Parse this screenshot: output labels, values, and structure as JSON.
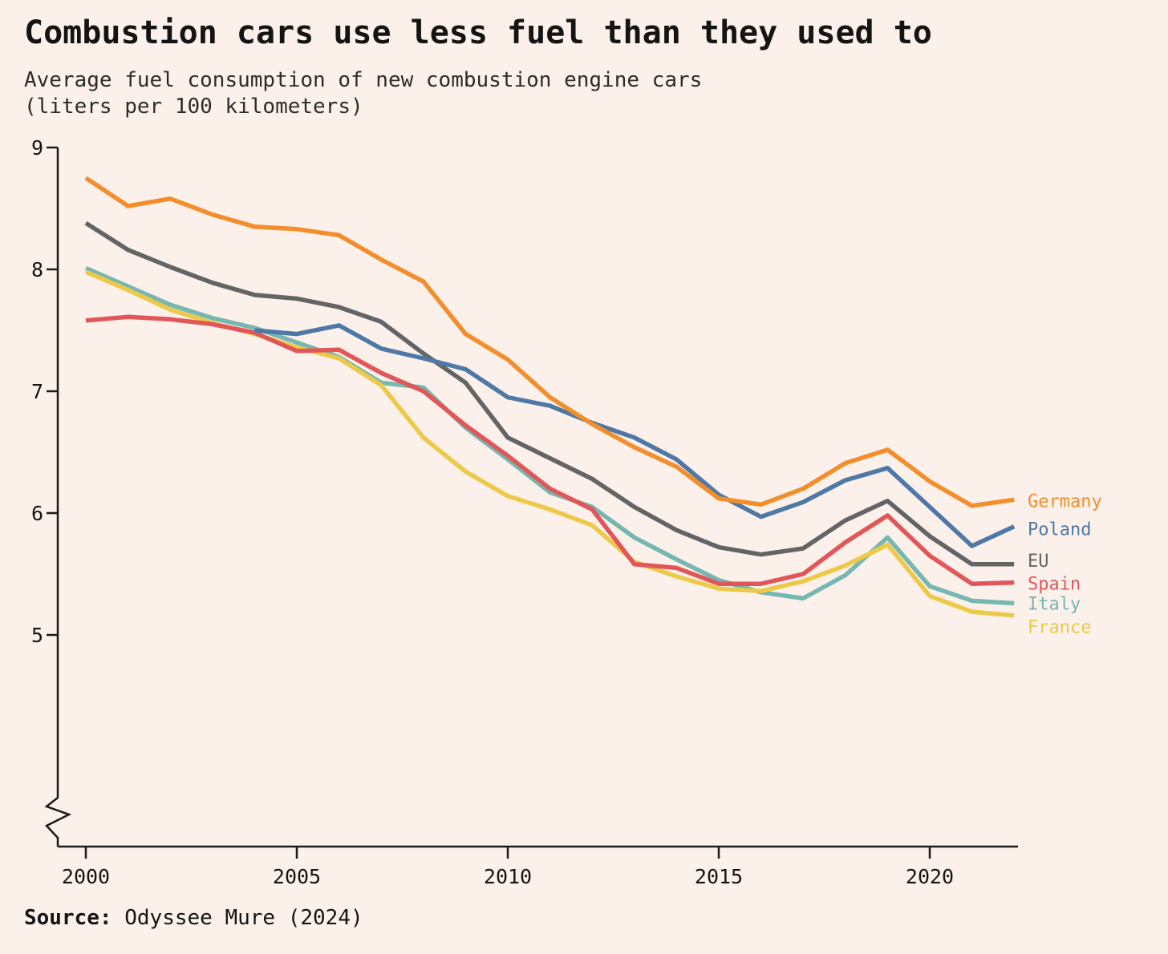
{
  "header": {
    "title": "Combustion cars use less fuel than they used to",
    "subtitle_line1": "Average fuel consumption of new combustion engine cars",
    "subtitle_line2": "(liters per 100 kilometers)"
  },
  "source": {
    "label": "Source:",
    "text": " Odyssee Mure (2024)"
  },
  "colors": {
    "background": "#fcf0ea",
    "axis": "#1a1a1a",
    "title_text": "#141414",
    "germany": "#f28e2b",
    "poland": "#4e79a7",
    "eu": "#646464",
    "spain": "#e15759",
    "italy": "#76b7b2",
    "france": "#edc949"
  },
  "chart_data": {
    "type": "line",
    "title": "Combustion cars use less fuel than they used to",
    "subtitle": "Average fuel consumption of new combustion engine cars (liters per 100 kilometers)",
    "xlabel": "",
    "ylabel": "liters per 100 kilometers",
    "years": [
      2000,
      2001,
      2002,
      2003,
      2004,
      2005,
      2006,
      2007,
      2008,
      2009,
      2010,
      2011,
      2012,
      2013,
      2014,
      2015,
      2016,
      2017,
      2018,
      2019,
      2020,
      2021,
      2022
    ],
    "xticks": [
      2000,
      2005,
      2010,
      2015,
      2020
    ],
    "yticks": [
      9,
      8,
      7,
      6,
      5
    ],
    "xlim": [
      2000,
      2022
    ],
    "ylim": [
      5,
      9
    ],
    "axis_break_at_bottom": true,
    "grid": false,
    "legend_position": "right",
    "series": [
      {
        "name": "Germany",
        "color": "#f28e2b",
        "start_year": 2000,
        "values": [
          8.75,
          8.52,
          8.58,
          8.45,
          8.35,
          8.33,
          8.28,
          8.08,
          7.9,
          7.47,
          7.26,
          6.95,
          6.73,
          6.54,
          6.38,
          6.12,
          6.07,
          6.2,
          6.41,
          6.52,
          6.26,
          6.06,
          6.11
        ]
      },
      {
        "name": "Poland",
        "color": "#4e79a7",
        "start_year": 2004,
        "values": [
          7.5,
          7.47,
          7.54,
          7.35,
          7.27,
          7.18,
          6.95,
          6.88,
          6.74,
          6.62,
          6.44,
          6.15,
          5.97,
          6.09,
          6.27,
          6.37,
          6.05,
          5.73,
          5.89
        ]
      },
      {
        "name": "EU",
        "color": "#646464",
        "start_year": 2000,
        "values": [
          8.38,
          8.16,
          8.02,
          7.89,
          7.79,
          7.76,
          7.69,
          7.57,
          7.31,
          7.07,
          6.62,
          6.45,
          6.28,
          6.05,
          5.86,
          5.72,
          5.66,
          5.71,
          5.94,
          6.1,
          5.81,
          5.58,
          5.58
        ]
      },
      {
        "name": "Spain",
        "color": "#e15759",
        "start_year": 2000,
        "values": [
          7.58,
          7.61,
          7.59,
          7.55,
          7.48,
          7.33,
          7.34,
          7.15,
          7.0,
          6.72,
          6.47,
          6.2,
          6.03,
          5.58,
          5.55,
          5.42,
          5.42,
          5.5,
          5.76,
          5.98,
          5.65,
          5.42,
          5.43
        ]
      },
      {
        "name": "Italy",
        "color": "#76b7b2",
        "start_year": 2000,
        "values": [
          8.01,
          7.86,
          7.71,
          7.6,
          7.52,
          7.4,
          7.28,
          7.07,
          7.03,
          6.7,
          6.44,
          6.17,
          6.05,
          5.8,
          5.62,
          5.45,
          5.35,
          5.3,
          5.49,
          5.8,
          5.4,
          5.28,
          5.26
        ]
      },
      {
        "name": "France",
        "color": "#edc949",
        "start_year": 2000,
        "values": [
          7.98,
          7.83,
          7.67,
          7.56,
          7.47,
          7.36,
          7.27,
          7.05,
          6.62,
          6.34,
          6.14,
          6.03,
          5.9,
          5.6,
          5.48,
          5.38,
          5.36,
          5.44,
          5.57,
          5.74,
          5.32,
          5.19,
          5.16
        ]
      }
    ]
  }
}
